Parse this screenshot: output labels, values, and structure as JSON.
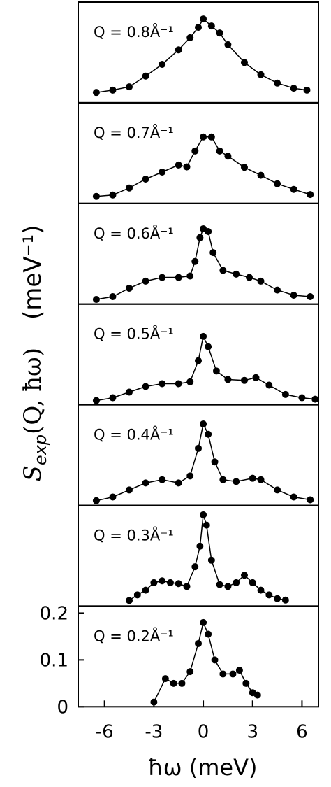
{
  "chart_data": {
    "type": "line",
    "color": "#000000",
    "xlabel": "ħω (meV)",
    "ylabel": {
      "symbol": "S",
      "sub": "exp",
      "args": "(Q, ħω)",
      "unit": "(meV⁻¹)"
    },
    "xlim": [
      -7.6,
      7.0
    ],
    "xticks": [
      -6,
      -3,
      0,
      3,
      6
    ],
    "ylim": [
      0,
      0.215
    ],
    "panels": [
      {
        "label": "Q = 0.8Å⁻¹",
        "x": [
          -6.5,
          -5.5,
          -4.5,
          -3.5,
          -2.5,
          -1.5,
          -0.8,
          -0.3,
          0,
          0.5,
          1,
          1.5,
          2.5,
          3.5,
          4.5,
          5.5,
          6.3
        ],
        "values": [
          0.022,
          0.027,
          0.034,
          0.057,
          0.082,
          0.113,
          0.139,
          0.161,
          0.179,
          0.164,
          0.149,
          0.124,
          0.086,
          0.06,
          0.042,
          0.031,
          0.027
        ]
      },
      {
        "label": "Q = 0.7Å⁻¹",
        "x": [
          -6.5,
          -5.5,
          -4.5,
          -3.5,
          -2.5,
          -1.5,
          -1,
          -0.5,
          0,
          0.5,
          1,
          1.5,
          2.5,
          3.5,
          4.5,
          5.5,
          6.5
        ],
        "values": [
          0.015,
          0.018,
          0.033,
          0.052,
          0.067,
          0.082,
          0.078,
          0.112,
          0.142,
          0.142,
          0.112,
          0.101,
          0.077,
          0.06,
          0.042,
          0.03,
          0.019
        ]
      },
      {
        "label": "Q = 0.6Å⁻¹",
        "x": [
          -6.5,
          -5.5,
          -4.5,
          -3.5,
          -2.5,
          -1.5,
          -0.8,
          -0.5,
          -0.2,
          0,
          0.3,
          0.6,
          1.2,
          2,
          2.8,
          3.5,
          4.5,
          5.5,
          6.5
        ],
        "values": [
          0.01,
          0.016,
          0.034,
          0.049,
          0.057,
          0.057,
          0.06,
          0.091,
          0.142,
          0.161,
          0.155,
          0.11,
          0.072,
          0.064,
          0.057,
          0.049,
          0.03,
          0.019,
          0.016
        ]
      },
      {
        "label": "Q = 0.5Å⁻¹",
        "x": [
          -6.5,
          -5.5,
          -4.5,
          -3.5,
          -2.5,
          -1.5,
          -0.8,
          -0.3,
          0,
          0.3,
          0.8,
          1.5,
          2.5,
          3.2,
          4,
          5,
          6,
          6.8
        ],
        "values": [
          0.009,
          0.015,
          0.027,
          0.039,
          0.045,
          0.045,
          0.049,
          0.094,
          0.146,
          0.124,
          0.072,
          0.054,
          0.052,
          0.058,
          0.042,
          0.022,
          0.015,
          0.012
        ]
      },
      {
        "label": "Q = 0.4Å⁻¹",
        "x": [
          -6.5,
          -5.5,
          -4.5,
          -3.5,
          -2.5,
          -1.5,
          -0.8,
          -0.3,
          0,
          0.3,
          0.7,
          1.2,
          2,
          3,
          3.5,
          4.5,
          5.5,
          6.5
        ],
        "values": [
          0.01,
          0.018,
          0.033,
          0.048,
          0.055,
          0.048,
          0.063,
          0.122,
          0.174,
          0.152,
          0.093,
          0.055,
          0.051,
          0.058,
          0.055,
          0.033,
          0.018,
          0.012
        ]
      },
      {
        "label": "Q = 0.3Å⁻¹",
        "x": [
          -4.5,
          -4,
          -3.5,
          -3,
          -2.5,
          -2,
          -1.5,
          -1,
          -0.5,
          -0.2,
          0,
          0.2,
          0.5,
          1,
          1.5,
          2,
          2.5,
          3,
          3.5,
          4,
          4.5,
          5
        ],
        "values": [
          0.012,
          0.024,
          0.034,
          0.05,
          0.054,
          0.05,
          0.048,
          0.042,
          0.084,
          0.128,
          0.195,
          0.173,
          0.098,
          0.046,
          0.042,
          0.05,
          0.066,
          0.05,
          0.034,
          0.024,
          0.016,
          0.013
        ]
      },
      {
        "label": "Q = 0.2Å⁻¹",
        "x": [
          -3,
          -2.3,
          -1.8,
          -1.3,
          -0.8,
          -0.3,
          0,
          0.3,
          0.7,
          1.2,
          1.8,
          2.2,
          2.6,
          3,
          3.3
        ],
        "values": [
          0.01,
          0.06,
          0.05,
          0.05,
          0.075,
          0.135,
          0.18,
          0.155,
          0.1,
          0.07,
          0.07,
          0.078,
          0.05,
          0.03,
          0.025
        ],
        "yticks": [
          0,
          0.1,
          0.2
        ]
      }
    ]
  }
}
